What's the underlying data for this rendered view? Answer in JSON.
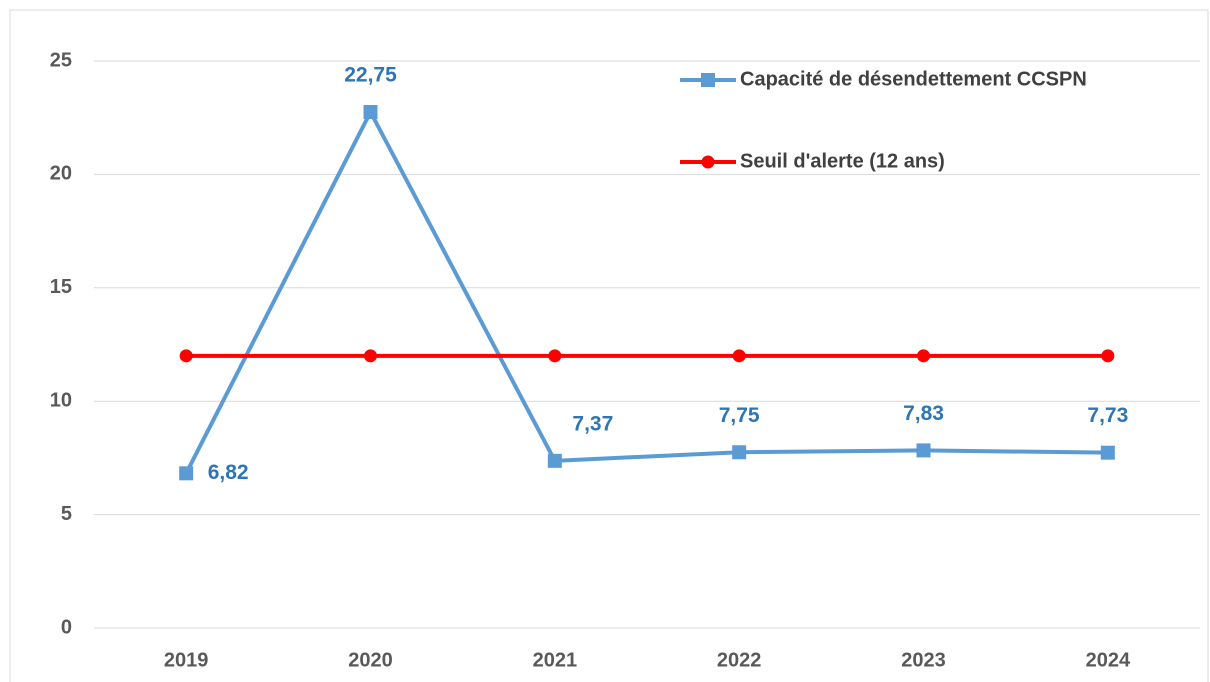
{
  "chart_data": {
    "type": "line",
    "categories": [
      "2019",
      "2020",
      "2021",
      "2022",
      "2023",
      "2024"
    ],
    "series": [
      {
        "name": "Capacité de désendettement CCSPN",
        "color": "#5b9bd5",
        "marker": "square",
        "values": [
          6.82,
          22.75,
          7.37,
          7.75,
          7.83,
          7.73
        ],
        "value_labels": [
          "6,82",
          "22,75",
          "7,37",
          "7,75",
          "7,83",
          "7,73"
        ]
      },
      {
        "name": "Seuil d'alerte (12 ans)",
        "color": "#ff0000",
        "marker": "circle",
        "values": [
          12,
          12,
          12,
          12,
          12,
          12
        ]
      }
    ],
    "ylim": [
      0,
      25
    ],
    "yticks": [
      0,
      5,
      10,
      15,
      20,
      25
    ],
    "grid": true,
    "legend": "top-right"
  }
}
